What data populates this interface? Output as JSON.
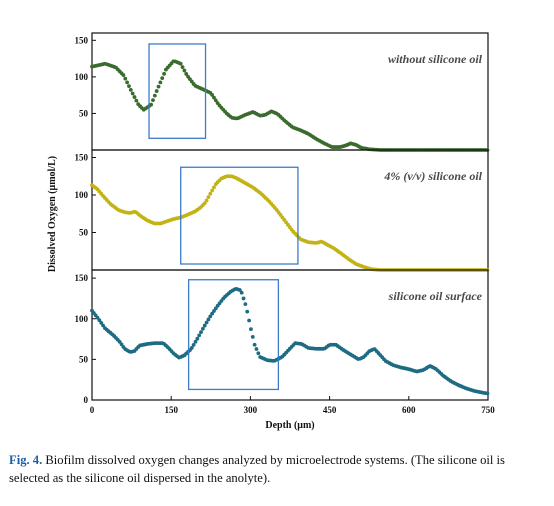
{
  "figure": {
    "ylabel": "Dissolved Oxygen (μmol/L)",
    "xlabel": "Depth (μm)"
  },
  "caption": {
    "label": "Fig. 4.",
    "text": " Biofilm dissolved oxygen changes analyzed by microelectrode systems. (The silicone oil is selected as the silicone oil dispersed in the anolyte)."
  },
  "chart_data": [
    {
      "type": "scatter",
      "annotation": "without silicone oil",
      "color": "#3b6b2e",
      "xlim": [
        0,
        750
      ],
      "ylim": [
        0,
        160
      ],
      "yticks": [
        50,
        100,
        150
      ],
      "highlight_box": {
        "x": [
          108,
          215
        ],
        "y": [
          16,
          145
        ]
      },
      "points": [
        [
          0,
          114
        ],
        [
          25,
          118
        ],
        [
          45,
          113
        ],
        [
          60,
          102
        ],
        [
          75,
          80
        ],
        [
          88,
          62
        ],
        [
          98,
          55
        ],
        [
          112,
          62
        ],
        [
          125,
          85
        ],
        [
          140,
          110
        ],
        [
          155,
          122
        ],
        [
          168,
          118
        ],
        [
          180,
          102
        ],
        [
          195,
          88
        ],
        [
          210,
          83
        ],
        [
          225,
          78
        ],
        [
          240,
          62
        ],
        [
          255,
          50
        ],
        [
          265,
          44
        ],
        [
          275,
          43
        ],
        [
          290,
          48
        ],
        [
          305,
          52
        ],
        [
          318,
          47
        ],
        [
          328,
          48
        ],
        [
          340,
          53
        ],
        [
          352,
          49
        ],
        [
          365,
          40
        ],
        [
          380,
          31
        ],
        [
          395,
          27
        ],
        [
          410,
          22
        ],
        [
          425,
          15
        ],
        [
          440,
          9
        ],
        [
          455,
          4
        ],
        [
          470,
          4
        ],
        [
          480,
          6
        ],
        [
          490,
          9
        ],
        [
          500,
          7
        ],
        [
          510,
          3
        ],
        [
          525,
          1
        ],
        [
          545,
          0
        ],
        [
          600,
          0
        ],
        [
          680,
          0
        ],
        [
          750,
          0
        ]
      ]
    },
    {
      "type": "scatter",
      "annotation": "4% (v/v) silicone oil",
      "color": "#c3b314",
      "xlim": [
        0,
        750
      ],
      "ylim": [
        0,
        160
      ],
      "yticks": [
        50,
        100,
        150
      ],
      "highlight_box": {
        "x": [
          168,
          390
        ],
        "y": [
          8,
          137
        ]
      },
      "points": [
        [
          0,
          113
        ],
        [
          10,
          108
        ],
        [
          22,
          98
        ],
        [
          35,
          88
        ],
        [
          50,
          80
        ],
        [
          62,
          77
        ],
        [
          72,
          76
        ],
        [
          82,
          78
        ],
        [
          92,
          72
        ],
        [
          105,
          66
        ],
        [
          118,
          62
        ],
        [
          130,
          62
        ],
        [
          142,
          65
        ],
        [
          155,
          68
        ],
        [
          168,
          70
        ],
        [
          182,
          74
        ],
        [
          195,
          78
        ],
        [
          205,
          83
        ],
        [
          215,
          90
        ],
        [
          225,
          103
        ],
        [
          235,
          115
        ],
        [
          245,
          122
        ],
        [
          255,
          125
        ],
        [
          265,
          125
        ],
        [
          275,
          122
        ],
        [
          290,
          116
        ],
        [
          305,
          110
        ],
        [
          320,
          102
        ],
        [
          335,
          92
        ],
        [
          350,
          80
        ],
        [
          365,
          66
        ],
        [
          380,
          52
        ],
        [
          395,
          41
        ],
        [
          410,
          37
        ],
        [
          425,
          36
        ],
        [
          435,
          38
        ],
        [
          445,
          34
        ],
        [
          458,
          29
        ],
        [
          472,
          22
        ],
        [
          487,
          14
        ],
        [
          500,
          8
        ],
        [
          515,
          4
        ],
        [
          530,
          1
        ],
        [
          545,
          0
        ],
        [
          600,
          0
        ],
        [
          680,
          0
        ],
        [
          750,
          0
        ]
      ]
    },
    {
      "type": "scatter",
      "annotation": "silicone oil surface",
      "color": "#1e6b84",
      "xlim": [
        0,
        750
      ],
      "ylim": [
        0,
        160
      ],
      "yticks": [
        0,
        50,
        100,
        150
      ],
      "xticks": [
        0,
        150,
        300,
        450,
        600,
        750
      ],
      "highlight_box": {
        "x": [
          183,
          353
        ],
        "y": [
          13,
          148
        ]
      },
      "points": [
        [
          0,
          110
        ],
        [
          12,
          100
        ],
        [
          25,
          88
        ],
        [
          40,
          80
        ],
        [
          52,
          72
        ],
        [
          62,
          63
        ],
        [
          72,
          59
        ],
        [
          80,
          60
        ],
        [
          90,
          67
        ],
        [
          105,
          69
        ],
        [
          120,
          70
        ],
        [
          135,
          70
        ],
        [
          145,
          64
        ],
        [
          155,
          57
        ],
        [
          165,
          52
        ],
        [
          175,
          55
        ],
        [
          188,
          63
        ],
        [
          200,
          76
        ],
        [
          212,
          90
        ],
        [
          225,
          104
        ],
        [
          238,
          116
        ],
        [
          250,
          126
        ],
        [
          262,
          133
        ],
        [
          272,
          137
        ],
        [
          282,
          135
        ],
        [
          292,
          115
        ],
        [
          300,
          90
        ],
        [
          308,
          68
        ],
        [
          318,
          53
        ],
        [
          332,
          49
        ],
        [
          345,
          48
        ],
        [
          360,
          53
        ],
        [
          373,
          62
        ],
        [
          385,
          70
        ],
        [
          397,
          69
        ],
        [
          410,
          64
        ],
        [
          425,
          63
        ],
        [
          440,
          63
        ],
        [
          450,
          68
        ],
        [
          462,
          68
        ],
        [
          475,
          62
        ],
        [
          490,
          56
        ],
        [
          505,
          50
        ],
        [
          515,
          53
        ],
        [
          525,
          60
        ],
        [
          535,
          63
        ],
        [
          545,
          56
        ],
        [
          556,
          48
        ],
        [
          570,
          43
        ],
        [
          585,
          40
        ],
        [
          600,
          38
        ],
        [
          615,
          35
        ],
        [
          628,
          37
        ],
        [
          640,
          42
        ],
        [
          652,
          38
        ],
        [
          665,
          30
        ],
        [
          680,
          23
        ],
        [
          695,
          18
        ],
        [
          710,
          14
        ],
        [
          725,
          11
        ],
        [
          740,
          9
        ],
        [
          750,
          8
        ]
      ]
    }
  ]
}
